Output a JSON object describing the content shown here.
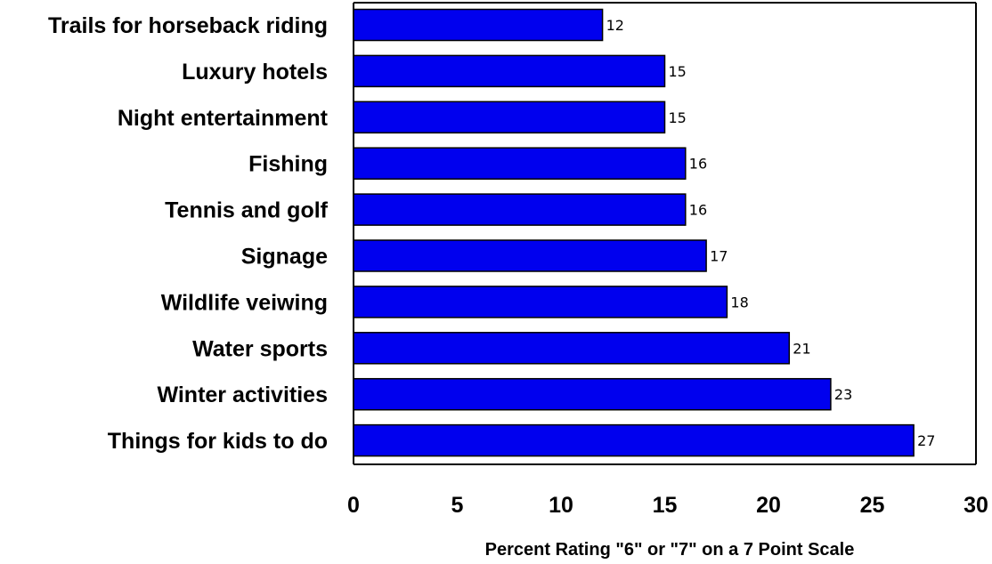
{
  "chart_data": {
    "type": "bar",
    "orientation": "horizontal",
    "title": "",
    "xlabel": "Percent Rating \"6\" or \"7\" on a 7 Point Scale",
    "ylabel": "",
    "categories": [
      "Trails for horseback riding",
      "Luxury hotels",
      "Night entertainment",
      "Fishing",
      "Tennis and golf",
      "Signage",
      "Wildlife veiwing",
      "Water sports",
      "Winter activities",
      "Things for kids to do"
    ],
    "values": [
      12,
      15,
      15,
      16,
      16,
      17,
      18,
      21,
      23,
      27
    ],
    "data_labels": [
      "12",
      "15",
      "15",
      "16",
      "16",
      "17",
      "18",
      "21",
      "23",
      "27"
    ],
    "xlim": [
      0,
      30
    ],
    "xticks": [
      0,
      5,
      10,
      15,
      20,
      25,
      30
    ],
    "xtick_labels": [
      "0",
      "5",
      "10",
      "15",
      "20",
      "25",
      "30"
    ],
    "grid": false,
    "legend": "none",
    "colors": {
      "bar_fill": "#0000ee",
      "bar_edge": "#000000",
      "frame": "#000000"
    }
  }
}
